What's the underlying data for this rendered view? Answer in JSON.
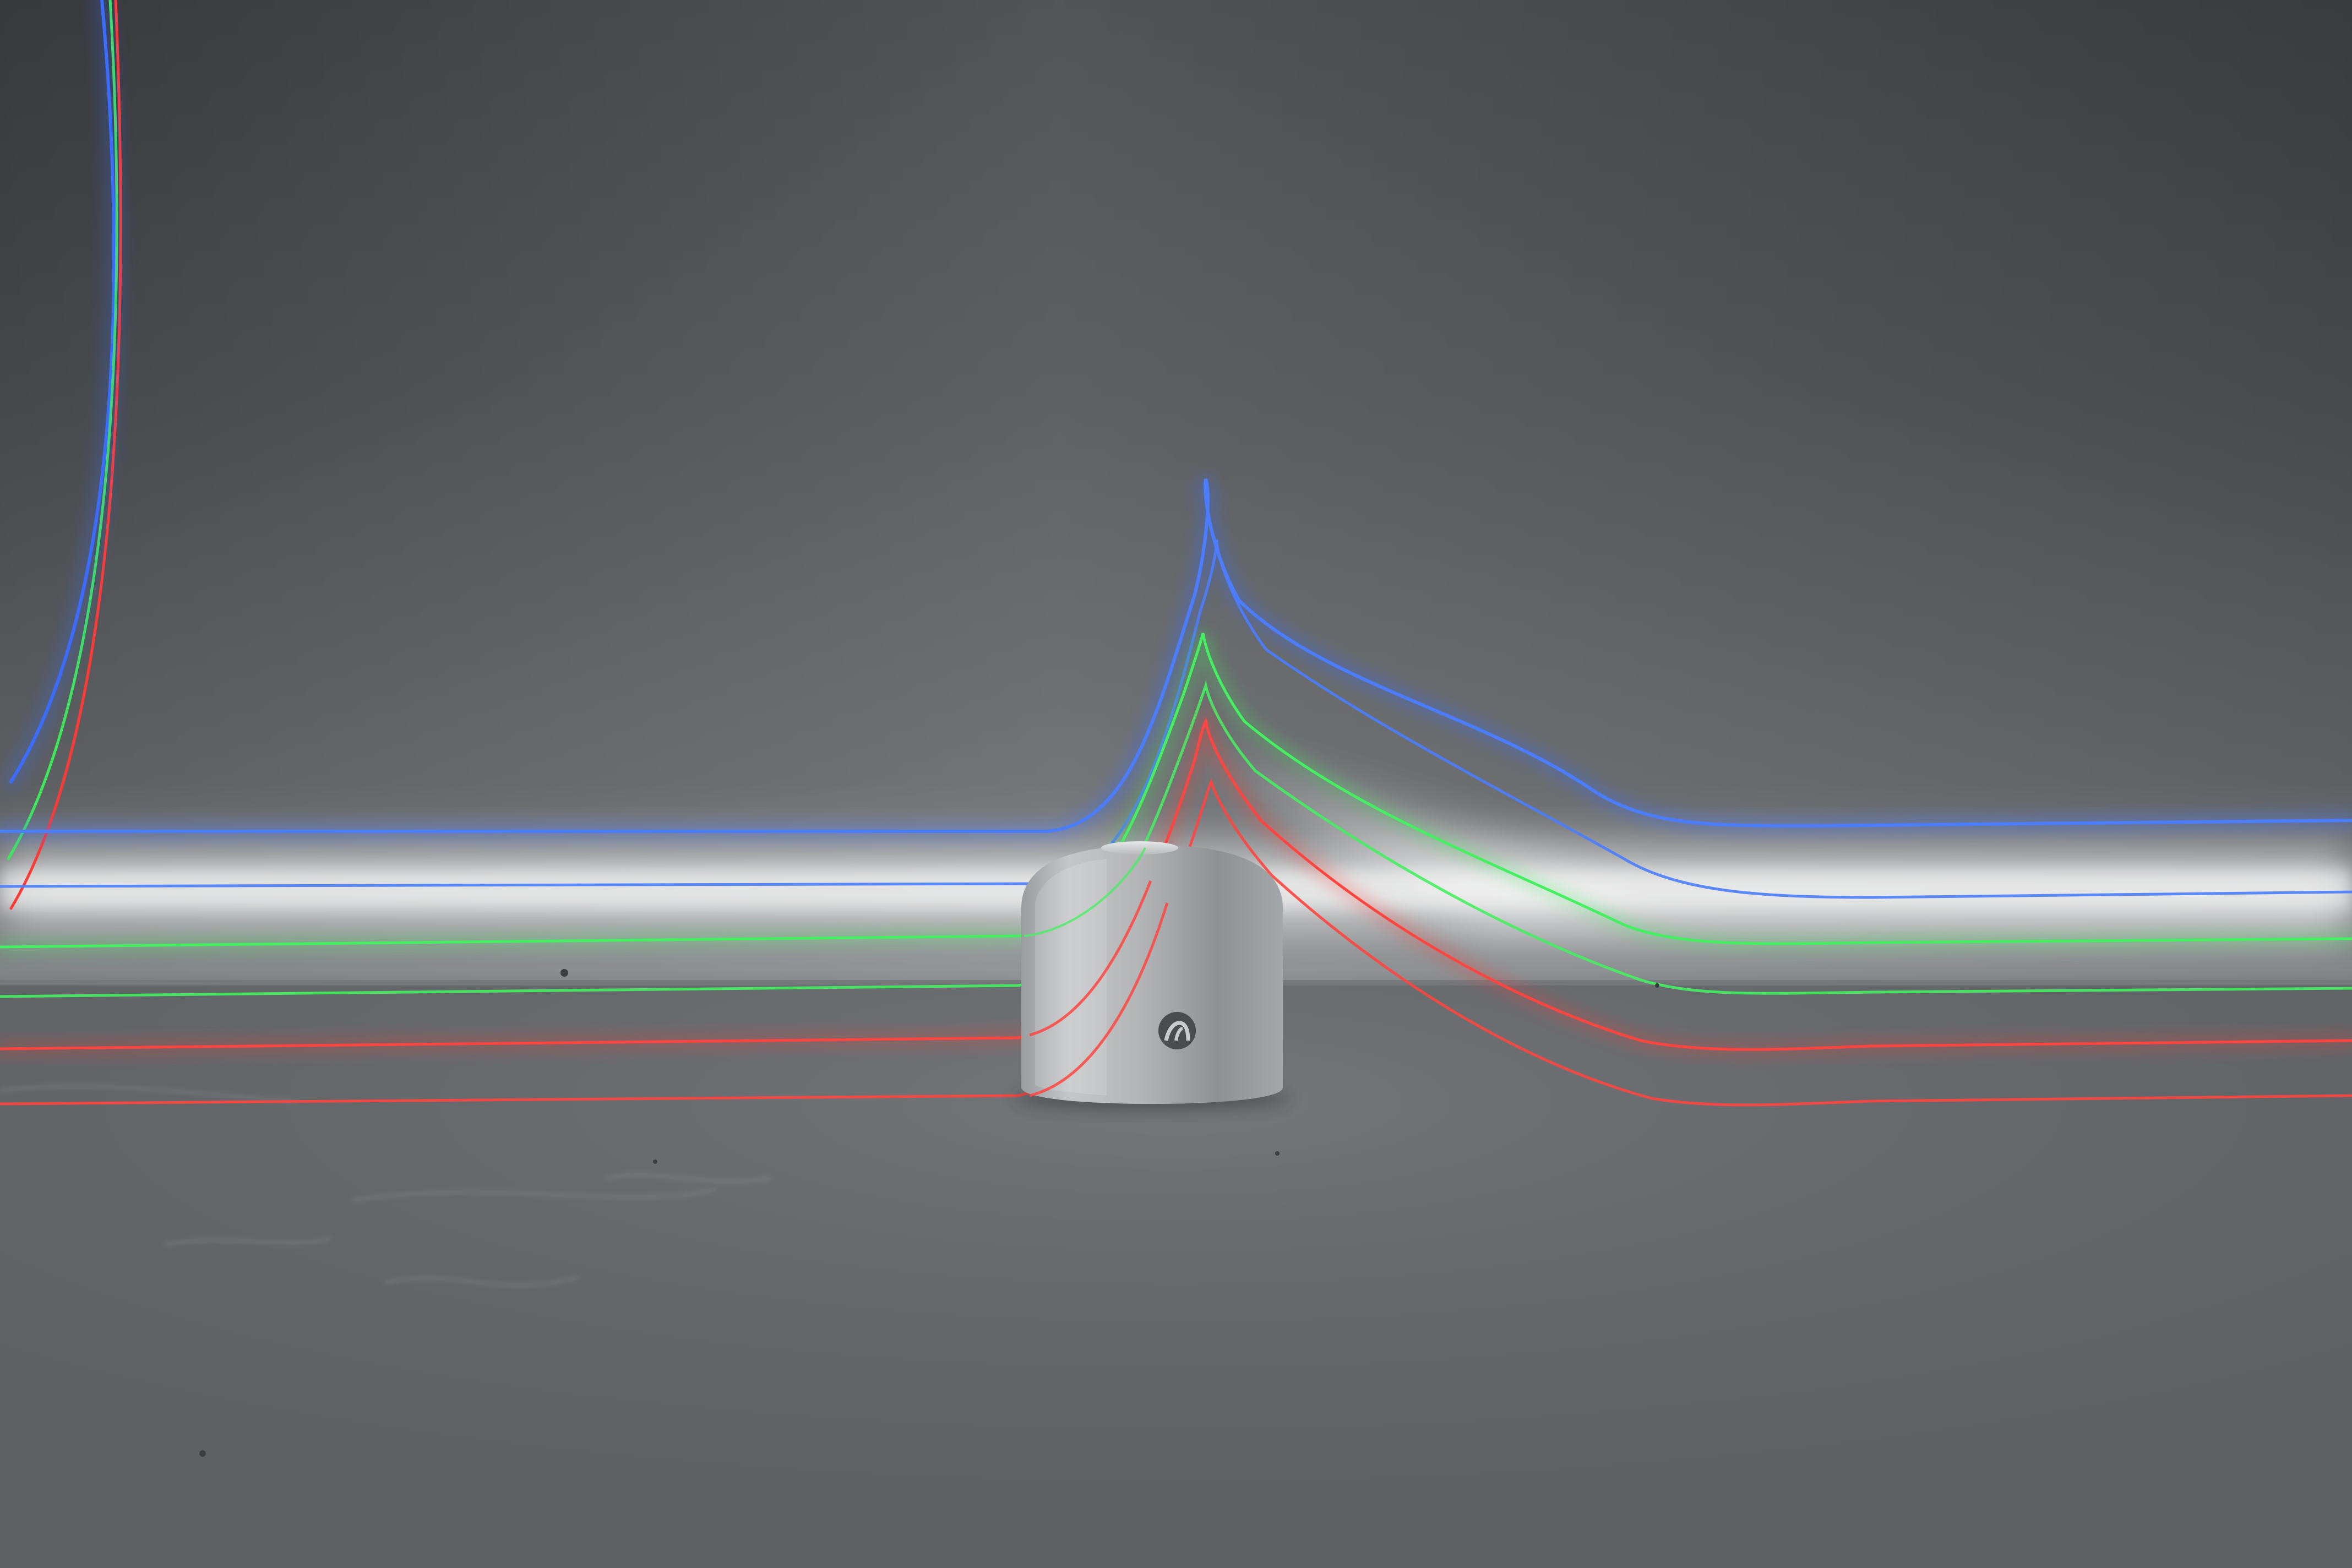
{
  "photo": {
    "subject": "",
    "colors": {
      "backdrop_top": "#2e3033",
      "backdrop_mid": "#6a6d70",
      "table_near": "#5c5f62",
      "table_far": "#7e8184",
      "cylinder_light": "#c9cbcd",
      "cylinder_dark": "#8c8f92",
      "trail_blue": "#3a6dff",
      "trail_green": "#3fe85a",
      "trail_red": "#ff3a34",
      "glow": "#ffffff"
    },
    "icons": {
      "device_logo": "stylized-m-logo-icon"
    }
  }
}
